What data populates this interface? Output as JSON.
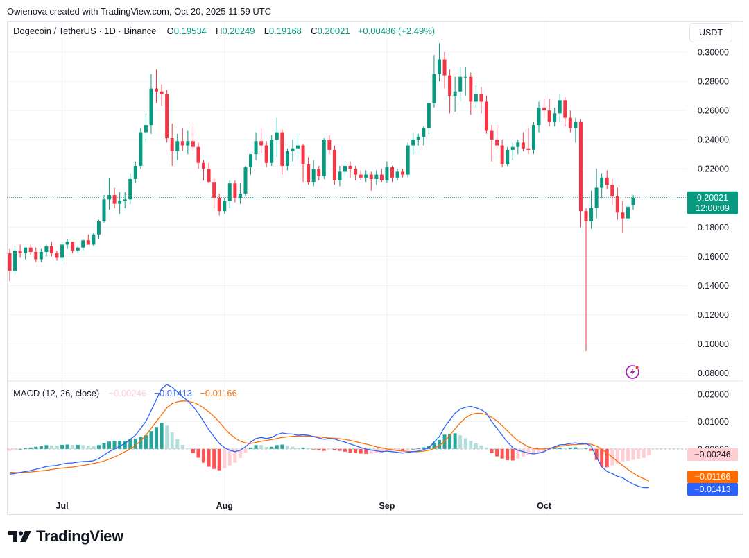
{
  "credit": "Owienova created with TradingView.com, Oct 20, 2025 11:59 UTC",
  "header": {
    "symbol": "Dogecoin / TetherUS · 1D · Binance",
    "open_label": "O",
    "open": "0.19534",
    "high_label": "H",
    "high": "0.20249",
    "low_label": "L",
    "low": "0.19168",
    "close_label": "C",
    "close": "0.20021",
    "change": "+0.00486 (+2.49%)"
  },
  "currency_button": "USDT",
  "price_tag": {
    "price": "0.20021",
    "countdown": "12:00:09"
  },
  "macd_legend": {
    "title": "MACD (12, 26, close)",
    "histogram": "−0.00246",
    "macd": "−0.01413",
    "signal": "−0.01166"
  },
  "macd_tags": {
    "histogram": "−0.00246",
    "signal": "−0.01166",
    "macd": "−0.01413"
  },
  "brand": "TradingView",
  "icons": {
    "flash": "lightning-icon",
    "logo": "tradingview-logo-icon"
  },
  "colors": {
    "up": "#089981",
    "down": "#f23645",
    "macd": "#2962ff",
    "signal": "#ff6d00",
    "hist_up_strong": "#26a69a",
    "hist_up_weak": "#b2dfdb",
    "hist_down_strong": "#ff5252",
    "hist_down_weak": "#ffcdd2"
  },
  "chart_data": [
    {
      "type": "candlestick",
      "title": "Dogecoin / TetherUS · 1D · Binance",
      "x_labels": [
        "Jul",
        "Aug",
        "Sep",
        "Oct"
      ],
      "y_ticks": [
        "0.30000",
        "0.28000",
        "0.26000",
        "0.24000",
        "0.22000",
        "0.20000",
        "0.18000",
        "0.16000",
        "0.14000",
        "0.12000",
        "0.10000",
        "0.08000"
      ],
      "ylim": [
        0.075,
        0.31
      ],
      "last_price": 0.20021,
      "candles": [
        [
          0.162,
          0.165,
          0.143,
          0.15
        ],
        [
          0.15,
          0.165,
          0.148,
          0.164
        ],
        [
          0.164,
          0.168,
          0.159,
          0.162
        ],
        [
          0.162,
          0.166,
          0.158,
          0.166
        ],
        [
          0.166,
          0.168,
          0.161,
          0.163
        ],
        [
          0.163,
          0.166,
          0.156,
          0.158
        ],
        [
          0.158,
          0.165,
          0.156,
          0.163
        ],
        [
          0.163,
          0.168,
          0.16,
          0.167
        ],
        [
          0.167,
          0.17,
          0.16,
          0.162
        ],
        [
          0.162,
          0.164,
          0.157,
          0.159
        ],
        [
          0.159,
          0.17,
          0.156,
          0.168
        ],
        [
          0.168,
          0.172,
          0.165,
          0.17
        ],
        [
          0.17,
          0.17,
          0.162,
          0.164
        ],
        [
          0.164,
          0.167,
          0.162,
          0.166
        ],
        [
          0.166,
          0.172,
          0.164,
          0.171
        ],
        [
          0.171,
          0.175,
          0.168,
          0.168
        ],
        [
          0.168,
          0.176,
          0.167,
          0.175
        ],
        [
          0.175,
          0.185,
          0.172,
          0.184
        ],
        [
          0.184,
          0.202,
          0.183,
          0.199
        ],
        [
          0.199,
          0.214,
          0.192,
          0.202
        ],
        [
          0.202,
          0.207,
          0.193,
          0.196
        ],
        [
          0.196,
          0.204,
          0.189,
          0.198
        ],
        [
          0.198,
          0.204,
          0.193,
          0.199
        ],
        [
          0.199,
          0.217,
          0.196,
          0.213
        ],
        [
          0.213,
          0.225,
          0.21,
          0.222
        ],
        [
          0.222,
          0.248,
          0.22,
          0.245
        ],
        [
          0.245,
          0.258,
          0.238,
          0.25
        ],
        [
          0.25,
          0.285,
          0.244,
          0.275
        ],
        [
          0.275,
          0.288,
          0.265,
          0.273
        ],
        [
          0.273,
          0.278,
          0.263,
          0.271
        ],
        [
          0.271,
          0.274,
          0.238,
          0.241
        ],
        [
          0.241,
          0.251,
          0.222,
          0.232
        ],
        [
          0.232,
          0.244,
          0.226,
          0.239
        ],
        [
          0.239,
          0.248,
          0.232,
          0.236
        ],
        [
          0.236,
          0.246,
          0.23,
          0.239
        ],
        [
          0.239,
          0.249,
          0.232,
          0.235
        ],
        [
          0.235,
          0.238,
          0.22,
          0.224
        ],
        [
          0.224,
          0.226,
          0.212,
          0.22
        ],
        [
          0.22,
          0.224,
          0.21,
          0.211
        ],
        [
          0.211,
          0.214,
          0.193,
          0.2
        ],
        [
          0.2,
          0.203,
          0.188,
          0.191
        ],
        [
          0.191,
          0.2,
          0.189,
          0.198
        ],
        [
          0.198,
          0.212,
          0.193,
          0.21
        ],
        [
          0.21,
          0.212,
          0.197,
          0.2
        ],
        [
          0.2,
          0.21,
          0.196,
          0.203
        ],
        [
          0.203,
          0.222,
          0.201,
          0.221
        ],
        [
          0.221,
          0.23,
          0.216,
          0.23
        ],
        [
          0.23,
          0.245,
          0.226,
          0.239
        ],
        [
          0.239,
          0.248,
          0.231,
          0.236
        ],
        [
          0.236,
          0.239,
          0.221,
          0.224
        ],
        [
          0.224,
          0.243,
          0.222,
          0.24
        ],
        [
          0.24,
          0.255,
          0.228,
          0.245
        ],
        [
          0.245,
          0.247,
          0.216,
          0.222
        ],
        [
          0.222,
          0.234,
          0.219,
          0.232
        ],
        [
          0.232,
          0.24,
          0.225,
          0.234
        ],
        [
          0.234,
          0.244,
          0.228,
          0.236
        ],
        [
          0.236,
          0.237,
          0.211,
          0.223
        ],
        [
          0.223,
          0.228,
          0.209,
          0.211
        ],
        [
          0.211,
          0.226,
          0.208,
          0.22
        ],
        [
          0.22,
          0.222,
          0.212,
          0.215
        ],
        [
          0.215,
          0.241,
          0.213,
          0.24
        ],
        [
          0.24,
          0.243,
          0.23,
          0.233
        ],
        [
          0.233,
          0.236,
          0.209,
          0.212
        ],
        [
          0.212,
          0.222,
          0.208,
          0.218
        ],
        [
          0.218,
          0.224,
          0.214,
          0.222
        ],
        [
          0.222,
          0.225,
          0.214,
          0.22
        ],
        [
          0.22,
          0.222,
          0.212,
          0.216
        ],
        [
          0.216,
          0.219,
          0.212,
          0.214
        ],
        [
          0.214,
          0.219,
          0.211,
          0.216
        ],
        [
          0.216,
          0.218,
          0.205,
          0.213
        ],
        [
          0.213,
          0.219,
          0.209,
          0.216
        ],
        [
          0.216,
          0.22,
          0.211,
          0.212
        ],
        [
          0.212,
          0.225,
          0.21,
          0.221
        ],
        [
          0.221,
          0.222,
          0.211,
          0.214
        ],
        [
          0.214,
          0.22,
          0.212,
          0.218
        ],
        [
          0.218,
          0.22,
          0.214,
          0.216
        ],
        [
          0.216,
          0.238,
          0.214,
          0.236
        ],
        [
          0.236,
          0.245,
          0.23,
          0.24
        ],
        [
          0.24,
          0.244,
          0.236,
          0.242
        ],
        [
          0.242,
          0.249,
          0.236,
          0.248
        ],
        [
          0.248,
          0.265,
          0.244,
          0.265
        ],
        [
          0.265,
          0.298,
          0.262,
          0.285
        ],
        [
          0.285,
          0.306,
          0.28,
          0.295
        ],
        [
          0.295,
          0.3,
          0.275,
          0.284
        ],
        [
          0.284,
          0.288,
          0.258,
          0.27
        ],
        [
          0.27,
          0.283,
          0.259,
          0.273
        ],
        [
          0.273,
          0.29,
          0.266,
          0.283
        ],
        [
          0.283,
          0.29,
          0.27,
          0.283
        ],
        [
          0.283,
          0.286,
          0.257,
          0.266
        ],
        [
          0.266,
          0.277,
          0.262,
          0.271
        ],
        [
          0.271,
          0.276,
          0.258,
          0.266
        ],
        [
          0.266,
          0.27,
          0.244,
          0.246
        ],
        [
          0.246,
          0.25,
          0.225,
          0.24
        ],
        [
          0.24,
          0.25,
          0.234,
          0.236
        ],
        [
          0.236,
          0.24,
          0.221,
          0.223
        ],
        [
          0.223,
          0.235,
          0.222,
          0.233
        ],
        [
          0.233,
          0.238,
          0.226,
          0.235
        ],
        [
          0.235,
          0.24,
          0.23,
          0.238
        ],
        [
          0.238,
          0.245,
          0.232,
          0.234
        ],
        [
          0.234,
          0.248,
          0.23,
          0.233
        ],
        [
          0.233,
          0.252,
          0.23,
          0.25
        ],
        [
          0.25,
          0.266,
          0.245,
          0.262
        ],
        [
          0.262,
          0.268,
          0.255,
          0.26
        ],
        [
          0.26,
          0.268,
          0.249,
          0.252
        ],
        [
          0.252,
          0.262,
          0.249,
          0.258
        ],
        [
          0.258,
          0.271,
          0.252,
          0.267
        ],
        [
          0.267,
          0.269,
          0.249,
          0.255
        ],
        [
          0.255,
          0.26,
          0.245,
          0.248
        ],
        [
          0.248,
          0.255,
          0.238,
          0.252
        ],
        [
          0.252,
          0.254,
          0.18,
          0.191
        ],
        [
          0.191,
          0.193,
          0.095,
          0.184
        ],
        [
          0.184,
          0.205,
          0.179,
          0.193
        ],
        [
          0.193,
          0.22,
          0.186,
          0.207
        ],
        [
          0.207,
          0.217,
          0.2,
          0.214
        ],
        [
          0.214,
          0.219,
          0.206,
          0.209
        ],
        [
          0.209,
          0.213,
          0.195,
          0.201
        ],
        [
          0.201,
          0.207,
          0.185,
          0.19
        ],
        [
          0.19,
          0.198,
          0.176,
          0.186
        ],
        [
          0.186,
          0.195,
          0.184,
          0.194
        ],
        [
          0.195,
          0.202,
          0.192,
          0.2
        ]
      ]
    },
    {
      "type": "macd",
      "title": "MACD (12, 26, close)",
      "y_ticks": [
        "0.02000",
        "0.01000",
        "0.00000"
      ],
      "ylim": [
        -0.0185,
        0.0245
      ],
      "macd": [
        -0.0092,
        -0.009,
        -0.0086,
        -0.0082,
        -0.0079,
        -0.0074,
        -0.007,
        -0.0064,
        -0.0062,
        -0.006,
        -0.0055,
        -0.0052,
        -0.0051,
        -0.0048,
        -0.0046,
        -0.0045,
        -0.0043,
        -0.0035,
        -0.0022,
        -0.001,
        0.0,
        0.001,
        0.002,
        0.0035,
        0.005,
        0.0075,
        0.01,
        0.014,
        0.018,
        0.022,
        0.0235,
        0.0225,
        0.0208,
        0.019,
        0.0175,
        0.0155,
        0.013,
        0.01,
        0.007,
        0.0045,
        0.002,
        0.0005,
        -0.0005,
        -0.001,
        -0.0005,
        0.0008,
        0.0025,
        0.0038,
        0.0042,
        0.0038,
        0.0042,
        0.0052,
        0.0058,
        0.0055,
        0.0054,
        0.005,
        0.0052,
        0.005,
        0.0045,
        0.004,
        0.0035,
        0.0038,
        0.0036,
        0.003,
        0.0025,
        0.0018,
        0.0012,
        0.0005,
        0.0,
        -0.0004,
        -0.0007,
        -0.001,
        -0.0008,
        -0.001,
        -0.0012,
        -0.0015,
        -0.0012,
        -0.001,
        -0.0008,
        -0.0002,
        0.0005,
        0.0025,
        0.0045,
        0.008,
        0.0105,
        0.013,
        0.0145,
        0.0152,
        0.0155,
        0.015,
        0.0143,
        0.013,
        0.01,
        0.0075,
        0.005,
        0.0025,
        0.0005,
        -0.0005,
        -0.001,
        -0.0015,
        -0.0018,
        -0.0015,
        -0.001,
        0.0,
        0.0008,
        0.0015,
        0.0016,
        0.002,
        0.0022,
        0.0018,
        0.002,
        0.001,
        -0.003,
        -0.0065,
        -0.0082,
        -0.009,
        -0.01,
        -0.0105,
        -0.0118,
        -0.0128,
        -0.0136,
        -0.0141,
        -0.0141
      ],
      "signal": [
        -0.0085,
        -0.0086,
        -0.0086,
        -0.0085,
        -0.0084,
        -0.0082,
        -0.008,
        -0.0078,
        -0.0075,
        -0.0072,
        -0.007,
        -0.0068,
        -0.0066,
        -0.0063,
        -0.006,
        -0.0057,
        -0.0053,
        -0.0049,
        -0.0044,
        -0.0037,
        -0.0029,
        -0.002,
        -0.001,
        0.0,
        0.0012,
        0.003,
        0.005,
        0.0075,
        0.01,
        0.0125,
        0.015,
        0.0165,
        0.0172,
        0.0175,
        0.0174,
        0.017,
        0.0162,
        0.015,
        0.0135,
        0.0118,
        0.0098,
        0.0075,
        0.0055,
        0.004,
        0.0028,
        0.0022,
        0.002,
        0.0024,
        0.0028,
        0.0031,
        0.0034,
        0.0038,
        0.0042,
        0.0044,
        0.0046,
        0.0047,
        0.0047,
        0.0047,
        0.0046,
        0.0044,
        0.0042,
        0.004,
        0.0039,
        0.0037,
        0.0035,
        0.0031,
        0.0027,
        0.0022,
        0.0018,
        0.0013,
        0.0008,
        0.0004,
        0.0,
        -0.0003,
        -0.0006,
        -0.0008,
        -0.0009,
        -0.001,
        -0.001,
        -0.0008,
        -0.0005,
        0.0002,
        0.0012,
        0.0028,
        0.005,
        0.0073,
        0.0095,
        0.0113,
        0.0125,
        0.013,
        0.013,
        0.0125,
        0.0115,
        0.0102,
        0.0085,
        0.0066,
        0.0047,
        0.003,
        0.0018,
        0.0008,
        0.0002,
        0.0,
        0.0,
        0.0003,
        0.0006,
        0.001,
        0.0012,
        0.0015,
        0.0016,
        0.0017,
        0.0018,
        0.0017,
        0.001,
        0.0,
        -0.0015,
        -0.003,
        -0.0045,
        -0.006,
        -0.0075,
        -0.0088,
        -0.01,
        -0.0108,
        -0.0117
      ],
      "histogram": "macd minus signal (computed)"
    }
  ]
}
